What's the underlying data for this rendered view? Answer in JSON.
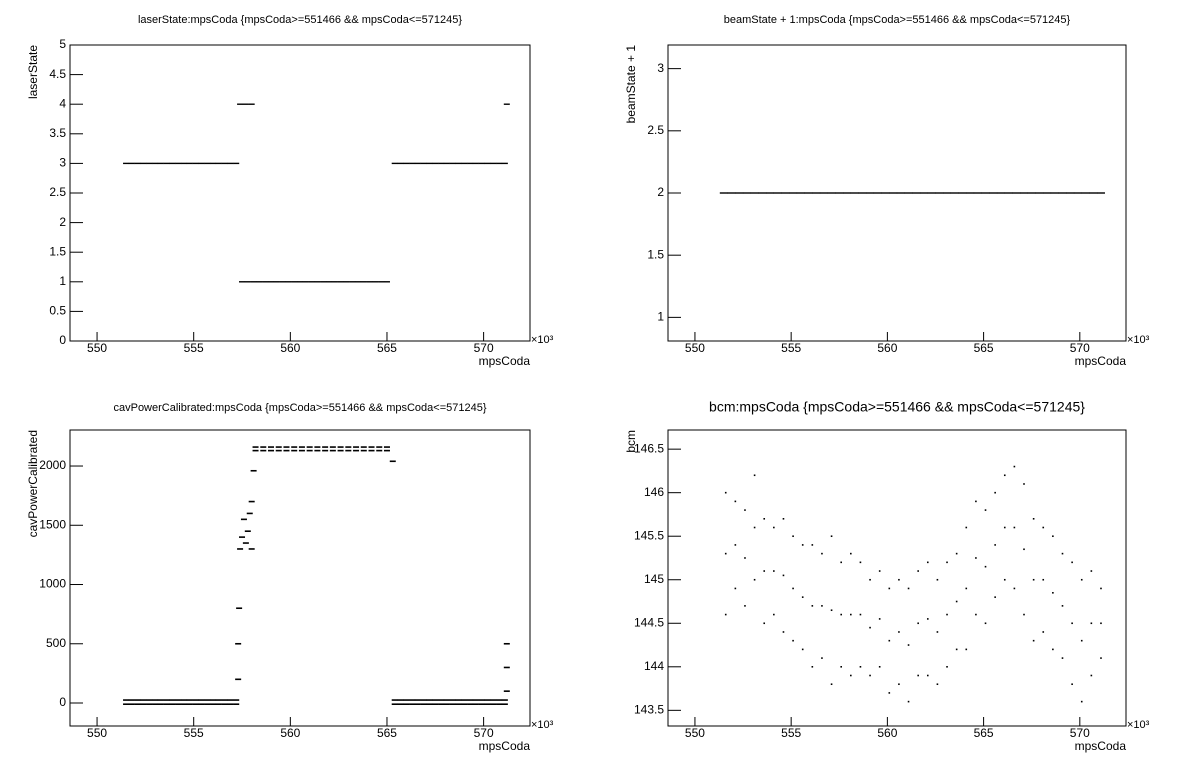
{
  "chart_data": [
    {
      "type": "scatter",
      "title": "laserState:mpsCoda {mpsCoda>=551466 && mpsCoda<=571245}",
      "x_label": "mpsCoda",
      "y_label": "laserState",
      "x_exponent_label": "×10³",
      "color": "#000000",
      "xlim": [
        548.6,
        572.4
      ],
      "xticks": [
        550,
        555,
        560,
        565,
        570
      ],
      "ylim": [
        0,
        5
      ],
      "yticks": [
        0,
        0.5,
        1,
        1.5,
        2,
        2.5,
        3,
        3.5,
        4,
        4.5,
        5
      ],
      "x": [
        551.5,
        551.8,
        552.1,
        552.4,
        552.7,
        553.0,
        553.3,
        553.6,
        553.9,
        554.2,
        554.5,
        554.8,
        555.1,
        555.4,
        555.7,
        556.0,
        556.3,
        556.6,
        556.9,
        557.2,
        557.4,
        557.7,
        558.0,
        557.5,
        557.8,
        558.1,
        558.4,
        558.7,
        559.0,
        559.3,
        559.6,
        559.9,
        560.2,
        560.5,
        560.8,
        561.1,
        561.4,
        561.7,
        562.0,
        562.3,
        562.6,
        562.9,
        563.2,
        563.5,
        563.8,
        564.1,
        564.4,
        564.7,
        565.0,
        565.4,
        565.7,
        566.0,
        566.3,
        566.6,
        566.9,
        567.2,
        567.5,
        567.8,
        568.1,
        568.4,
        568.7,
        569.0,
        569.3,
        569.6,
        569.9,
        570.2,
        570.5,
        570.8,
        571.1,
        571.2
      ],
      "values": [
        3,
        3,
        3,
        3,
        3,
        3,
        3,
        3,
        3,
        3,
        3,
        3,
        3,
        3,
        3,
        3,
        3,
        3,
        3,
        3,
        4,
        4,
        4,
        1,
        1,
        1,
        1,
        1,
        1,
        1,
        1,
        1,
        1,
        1,
        1,
        1,
        1,
        1,
        1,
        1,
        1,
        1,
        1,
        1,
        1,
        1,
        1,
        1,
        1,
        3,
        3,
        3,
        3,
        3,
        3,
        3,
        3,
        3,
        3,
        3,
        3,
        3,
        3,
        3,
        3,
        3,
        3,
        3,
        3,
        4
      ]
    },
    {
      "type": "scatter",
      "title": "beamState + 1:mpsCoda {mpsCoda>=551466 && mpsCoda<=571245}",
      "x_label": "mpsCoda",
      "y_label": "beamState + 1",
      "x_exponent_label": "×10³",
      "color": "#000000",
      "xlim": [
        548.6,
        572.4
      ],
      "xticks": [
        550,
        555,
        560,
        565,
        570
      ],
      "ylim": [
        0.81,
        3.19
      ],
      "yticks": [
        1,
        1.5,
        2,
        2.5,
        3
      ],
      "x": [
        551.5,
        551.9,
        552.3,
        552.7,
        553.1,
        553.5,
        553.9,
        554.3,
        554.7,
        555.1,
        555.5,
        555.9,
        556.3,
        556.7,
        557.1,
        557.5,
        557.9,
        558.3,
        558.7,
        559.1,
        559.5,
        559.9,
        560.3,
        560.7,
        561.1,
        561.5,
        561.9,
        562.3,
        562.7,
        563.1,
        563.5,
        563.9,
        564.3,
        564.7,
        565.1,
        565.5,
        565.9,
        566.3,
        566.7,
        567.1,
        567.5,
        567.9,
        568.3,
        568.7,
        569.1,
        569.5,
        569.9,
        570.3,
        570.7,
        571.1
      ],
      "values": [
        2,
        2,
        2,
        2,
        2,
        2,
        2,
        2,
        2,
        2,
        2,
        2,
        2,
        2,
        2,
        2,
        2,
        2,
        2,
        2,
        2,
        2,
        2,
        2,
        2,
        2,
        2,
        2,
        2,
        2,
        2,
        2,
        2,
        2,
        2,
        2,
        2,
        2,
        2,
        2,
        2,
        2,
        2,
        2,
        2,
        2,
        2,
        2,
        2,
        2
      ]
    },
    {
      "type": "scatter",
      "title": "cavPowerCalibrated:mpsCoda {mpsCoda>=551466 && mpsCoda<=571245}",
      "x_label": "mpsCoda",
      "y_label": "cavPowerCalibrated",
      "x_exponent_label": "×10³",
      "color": "#000000",
      "xlim": [
        548.6,
        572.4
      ],
      "xticks": [
        550,
        555,
        560,
        565,
        570
      ],
      "ylim": [
        -194,
        2304
      ],
      "yticks": [
        0,
        500,
        1000,
        1500,
        2000
      ],
      "x": [
        551.5,
        551.8,
        552.1,
        552.4,
        552.7,
        553.0,
        553.3,
        553.6,
        553.9,
        554.2,
        554.5,
        554.8,
        555.1,
        555.4,
        555.7,
        556.0,
        556.3,
        556.6,
        556.9,
        557.2,
        551.5,
        551.8,
        552.1,
        552.4,
        552.7,
        553.0,
        553.3,
        553.6,
        553.9,
        554.2,
        554.5,
        554.8,
        555.1,
        555.4,
        555.7,
        556.0,
        556.3,
        556.6,
        556.9,
        557.2,
        557.3,
        557.3,
        557.35,
        557.4,
        557.5,
        557.6,
        557.7,
        557.8,
        557.9,
        558.0,
        558.0,
        558.1,
        558.2,
        558.6,
        559.0,
        559.4,
        559.8,
        560.2,
        560.6,
        561.0,
        561.4,
        561.8,
        562.2,
        562.6,
        563.0,
        563.4,
        563.8,
        564.2,
        564.6,
        565.0,
        558.2,
        558.6,
        559.0,
        559.4,
        559.8,
        560.2,
        560.6,
        561.0,
        561.4,
        561.8,
        562.2,
        562.6,
        563.0,
        563.4,
        563.8,
        564.2,
        564.6,
        565.0,
        565.3,
        565.4,
        565.7,
        566.0,
        566.3,
        566.6,
        566.9,
        567.2,
        567.5,
        567.8,
        568.1,
        568.4,
        568.7,
        569.0,
        569.3,
        569.6,
        569.9,
        570.2,
        570.5,
        570.8,
        571.1,
        565.4,
        565.7,
        566.0,
        566.3,
        566.6,
        566.9,
        567.2,
        567.5,
        567.8,
        568.1,
        568.4,
        568.7,
        569.0,
        569.3,
        569.6,
        569.9,
        570.2,
        570.5,
        570.8,
        571.1,
        571.2,
        571.2,
        571.2
      ],
      "values": [
        25,
        25,
        25,
        25,
        25,
        25,
        25,
        25,
        25,
        25,
        25,
        25,
        25,
        25,
        25,
        25,
        25,
        25,
        25,
        25,
        -10,
        -10,
        -10,
        -10,
        -10,
        -10,
        -10,
        -10,
        -10,
        -10,
        -10,
        -10,
        -10,
        -10,
        -10,
        -10,
        -10,
        -10,
        -10,
        -10,
        200,
        500,
        800,
        1300,
        1400,
        1550,
        1350,
        1450,
        1600,
        1300,
        1700,
        1960,
        2160,
        2160,
        2160,
        2160,
        2160,
        2160,
        2160,
        2160,
        2160,
        2160,
        2160,
        2160,
        2160,
        2160,
        2160,
        2160,
        2160,
        2160,
        2130,
        2130,
        2130,
        2130,
        2130,
        2130,
        2130,
        2130,
        2130,
        2130,
        2130,
        2130,
        2130,
        2130,
        2130,
        2130,
        2130,
        2130,
        2040,
        25,
        25,
        25,
        25,
        25,
        25,
        25,
        25,
        25,
        25,
        25,
        25,
        25,
        25,
        25,
        25,
        25,
        25,
        25,
        25,
        -10,
        -10,
        -10,
        -10,
        -10,
        -10,
        -10,
        -10,
        -10,
        -10,
        -10,
        -10,
        -10,
        -10,
        -10,
        -10,
        -10,
        -10,
        -10,
        -10,
        100,
        300,
        500
      ]
    },
    {
      "type": "scatter",
      "title": "bcm:mpsCoda {mpsCoda>=551466 && mpsCoda<=571245}",
      "x_label": "mpsCoda",
      "y_label": "bcm",
      "x_exponent_label": "×10³",
      "color": "#000000",
      "xlim": [
        548.6,
        572.4
      ],
      "xticks": [
        550,
        555,
        560,
        565,
        570
      ],
      "ylim": [
        143.32,
        146.72
      ],
      "yticks": [
        143.5,
        144,
        144.5,
        145,
        145.5,
        146,
        146.5
      ],
      "x": [
        551.6,
        552.1,
        552.6,
        553.1,
        553.6,
        554.1,
        554.6,
        555.1,
        555.6,
        556.1,
        556.6,
        557.1,
        557.6,
        558.1,
        558.6,
        559.1,
        559.6,
        560.1,
        560.6,
        561.1,
        561.6,
        562.1,
        562.6,
        563.1,
        563.6,
        564.1,
        564.6,
        565.1,
        565.6,
        566.1,
        566.6,
        567.1,
        567.6,
        568.1,
        568.6,
        569.1,
        569.6,
        570.1,
        570.6,
        571.1
      ],
      "series": [
        {
          "values": [
            146.0,
            145.9,
            145.8,
            146.2,
            145.7,
            145.6,
            145.7,
            145.5,
            145.4,
            145.4,
            145.3,
            145.5,
            145.2,
            145.3,
            145.2,
            145.0,
            145.1,
            144.9,
            145.0,
            144.9,
            145.1,
            145.2,
            145.0,
            145.2,
            145.3,
            145.6,
            145.9,
            145.8,
            146.0,
            146.2,
            146.3,
            146.1,
            145.7,
            145.6,
            145.5,
            145.3,
            145.2,
            145.0,
            145.1,
            144.9
          ]
        },
        {
          "values": [
            145.3,
            145.4,
            145.25,
            145.6,
            145.1,
            145.1,
            145.05,
            144.9,
            144.8,
            144.7,
            144.7,
            144.65,
            144.6,
            144.6,
            144.6,
            144.45,
            144.55,
            144.3,
            144.4,
            144.25,
            144.5,
            144.55,
            144.4,
            144.6,
            144.75,
            144.9,
            145.25,
            145.15,
            145.4,
            145.6,
            145.6,
            145.35,
            145.0,
            145.0,
            144.85,
            144.7,
            144.5,
            144.3,
            144.5,
            144.5
          ]
        },
        {
          "values": [
            144.6,
            144.9,
            144.7,
            145.0,
            144.5,
            144.6,
            144.4,
            144.3,
            144.2,
            144.0,
            144.1,
            143.8,
            144.0,
            143.9,
            144.0,
            143.9,
            144.0,
            143.7,
            143.8,
            143.6,
            143.9,
            143.9,
            143.8,
            144.0,
            144.2,
            144.2,
            144.6,
            144.5,
            144.8,
            145.0,
            144.9,
            144.6,
            144.3,
            144.4,
            144.2,
            144.1,
            143.8,
            143.6,
            143.9,
            144.1
          ]
        }
      ]
    }
  ]
}
